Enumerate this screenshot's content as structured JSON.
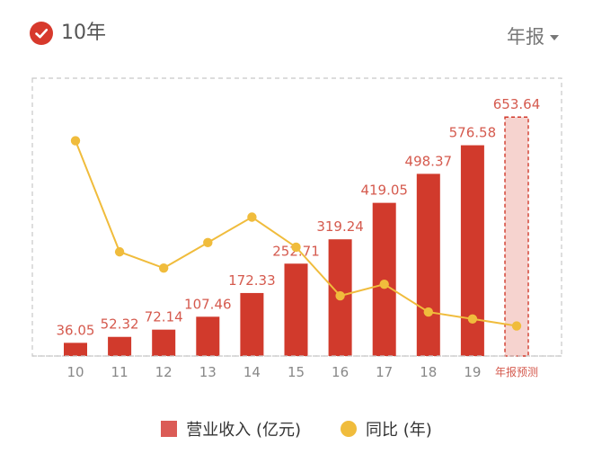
{
  "header": {
    "range_label": "10年",
    "period_label": "年报"
  },
  "colors": {
    "bar": "#d13a2c",
    "forecast_fill": "#f6d3cf",
    "forecast_border": "#d13a2c",
    "line": "#f0bc3c",
    "label": "#d55a4e",
    "axis_text": "#888888",
    "forecast_tick": "#d55a4e"
  },
  "chart_data": {
    "type": "bar",
    "categories": [
      "10",
      "11",
      "12",
      "13",
      "14",
      "15",
      "16",
      "17",
      "18",
      "19",
      "年报预测"
    ],
    "series": [
      {
        "name": "营业收入 (亿元)",
        "type": "bar",
        "values": [
          36.05,
          52.32,
          72.14,
          107.46,
          172.33,
          252.71,
          319.24,
          419.05,
          498.37,
          576.58,
          653.64
        ],
        "labels": [
          "36.05",
          "52.32",
          "72.14",
          "107.46",
          "172.33",
          "252.71",
          "319.24",
          "419.05",
          "498.37",
          "576.58",
          "653.64"
        ],
        "forecast_index": 10
      },
      {
        "name": "同比 (年)",
        "type": "line",
        "values": [
          93,
          45,
          38,
          49,
          60,
          47,
          26,
          31,
          19,
          16,
          13
        ]
      }
    ],
    "bar_ylim": [
      0,
      760
    ],
    "line_ylim": [
      0,
      120
    ],
    "grid": false,
    "legend_position": "bottom"
  }
}
